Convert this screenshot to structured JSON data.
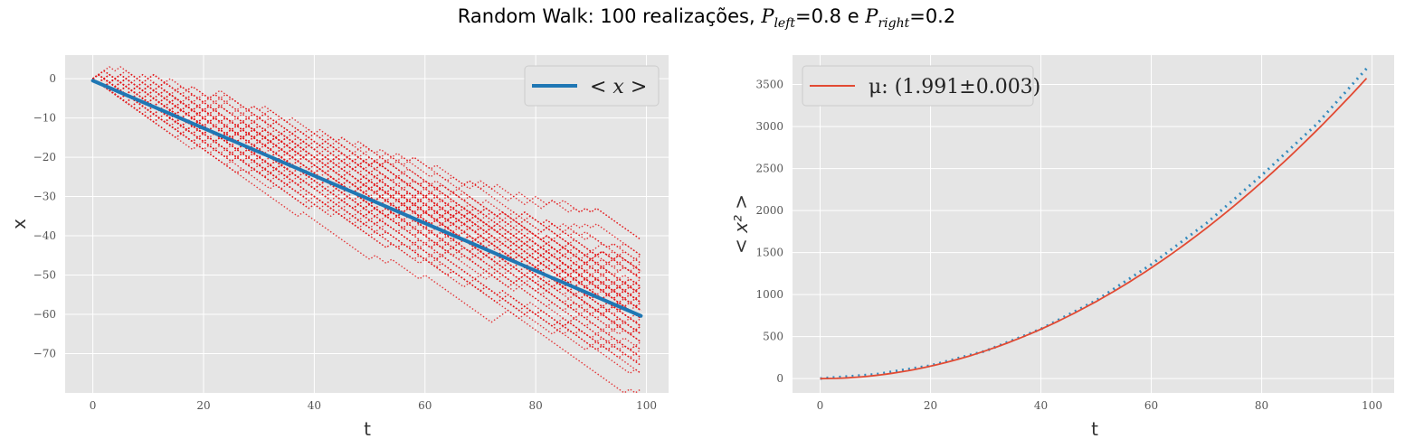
{
  "figure": {
    "title_prefix": "Random Walk: 100 realizações, ",
    "title_p_left_symbol": "P",
    "title_p_left_sub": "left",
    "title_p_left_value": "=0.8 e ",
    "title_p_right_symbol": "P",
    "title_p_right_sub": "right",
    "title_p_right_value": "=0.2"
  },
  "colors": {
    "panel_bg": "#e5e5e5",
    "grid": "#ffffff",
    "realization": "#e41a1c",
    "mean_line": "#1f77b4",
    "fit_line": "#e24a33",
    "points": "#348abd"
  },
  "chart_data": [
    {
      "type": "line",
      "xlabel": "t",
      "ylabel": "x",
      "xlim": [
        -5,
        104
      ],
      "ylim": [
        -80,
        6
      ],
      "xticks": [
        0,
        20,
        40,
        60,
        80,
        100
      ],
      "yticks": [
        0,
        -10,
        -20,
        -30,
        -40,
        -50,
        -60,
        -70
      ],
      "grid": true,
      "legend_placement": "top-right",
      "realizations": {
        "count": 100,
        "p_left": 0.8,
        "p_right": 0.2,
        "style": "dotted"
      },
      "series": [
        {
          "name": "< x >",
          "x": [
            0,
            99
          ],
          "values": [
            -0.5,
            -60.4
          ]
        }
      ]
    },
    {
      "type": "line",
      "xlabel": "t",
      "ylabel": "< x² >",
      "xlim": [
        -5,
        104
      ],
      "ylim": [
        -170,
        3850
      ],
      "xticks": [
        0,
        20,
        40,
        60,
        80,
        100
      ],
      "yticks": [
        0,
        500,
        1000,
        1500,
        2000,
        2500,
        3000,
        3500
      ],
      "grid": true,
      "legend_placement": "top-left",
      "series": [
        {
          "name": "μ: (1.991±0.003)",
          "fit": "power",
          "amplitude": 0.38,
          "exponent": 1.991,
          "x_range": [
            0,
            99
          ]
        },
        {
          "style": "dotted-points",
          "x": [
            0,
            10,
            20,
            30,
            40,
            50,
            60,
            70,
            80,
            90,
            99
          ],
          "values": [
            1,
            50,
            155,
            330,
            590,
            930,
            1360,
            1850,
            2420,
            3030,
            3690
          ]
        }
      ]
    }
  ]
}
